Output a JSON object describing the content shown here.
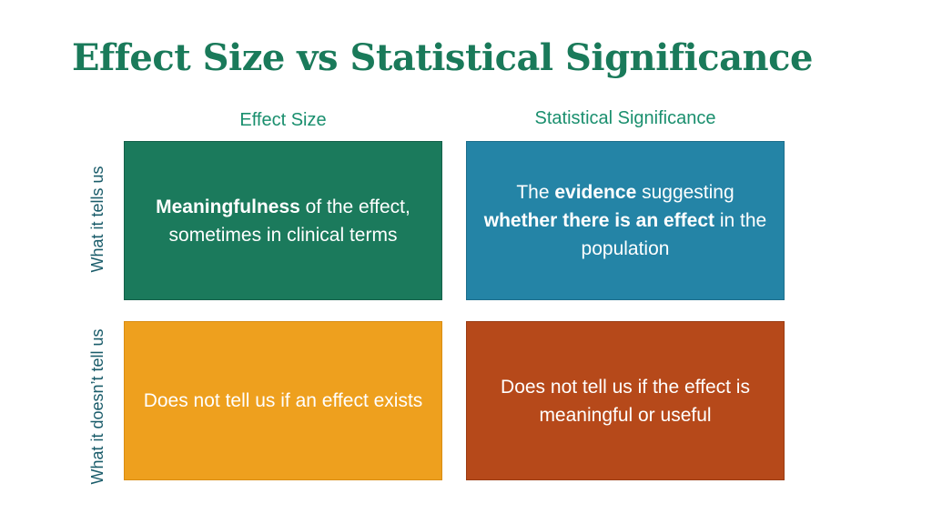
{
  "title": "Effect Size vs Statistical Significance",
  "columns": {
    "effect_size": "Effect Size",
    "statistical_significance": "Statistical Significance"
  },
  "rows": {
    "what_it_tells": "What it tells us",
    "what_it_doesnt_tell": "What it doesn’t tell us"
  },
  "cells": {
    "effect_tells": {
      "bold1": "Meaningfulness",
      "text1": " of the effect, sometimes in clinical terms"
    },
    "significance_tells": {
      "text1": "The ",
      "bold1": "evidence",
      "text2": " suggesting ",
      "bold2": "whether there is an effect",
      "text3": " in the population"
    },
    "effect_doesnt_tell": "Does not tell us if an effect exists",
    "significance_doesnt_tell": "Does not tell us if the effect is meaningful or useful"
  },
  "colors": {
    "title": "#1a7a5a",
    "header": "#1a8f6e",
    "effect_tells_fill": "#1b7a5c",
    "significance_tells_fill": "#2484a6",
    "effect_doesnt_tell_fill": "#eea01e",
    "significance_doesnt_tell_fill": "#b6491a"
  }
}
